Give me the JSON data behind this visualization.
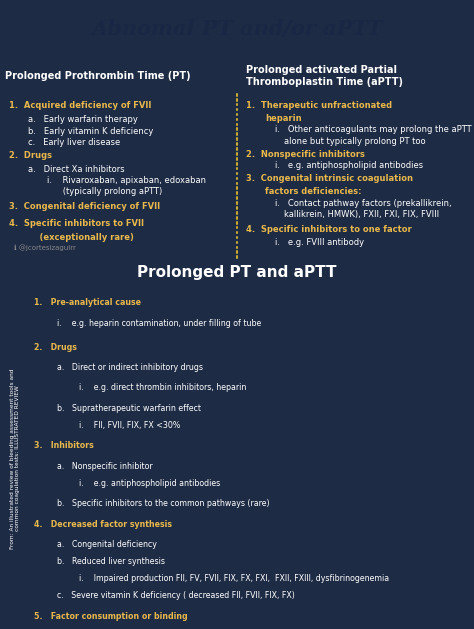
{
  "title": "Abnomal PT and/or aPTT",
  "title_color": "#1a2744",
  "title_bg": "#e8b84b",
  "bg_color": "#1e2b45",
  "text_white": "#ffffff",
  "text_yellow": "#e8b84b",
  "divider_color": "#c8a830",
  "section2_bg": "#243150",
  "section2_title": "Prolonged PT and aPTT",
  "side_bg": "#151e30",
  "col1_header": "Prolonged Prothrombin Time (PT)",
  "col2_header": "Prolonged activated Partial\nThromboplastin Time (aPTT)",
  "fig_width": 4.74,
  "fig_height": 6.29,
  "dpi": 100
}
